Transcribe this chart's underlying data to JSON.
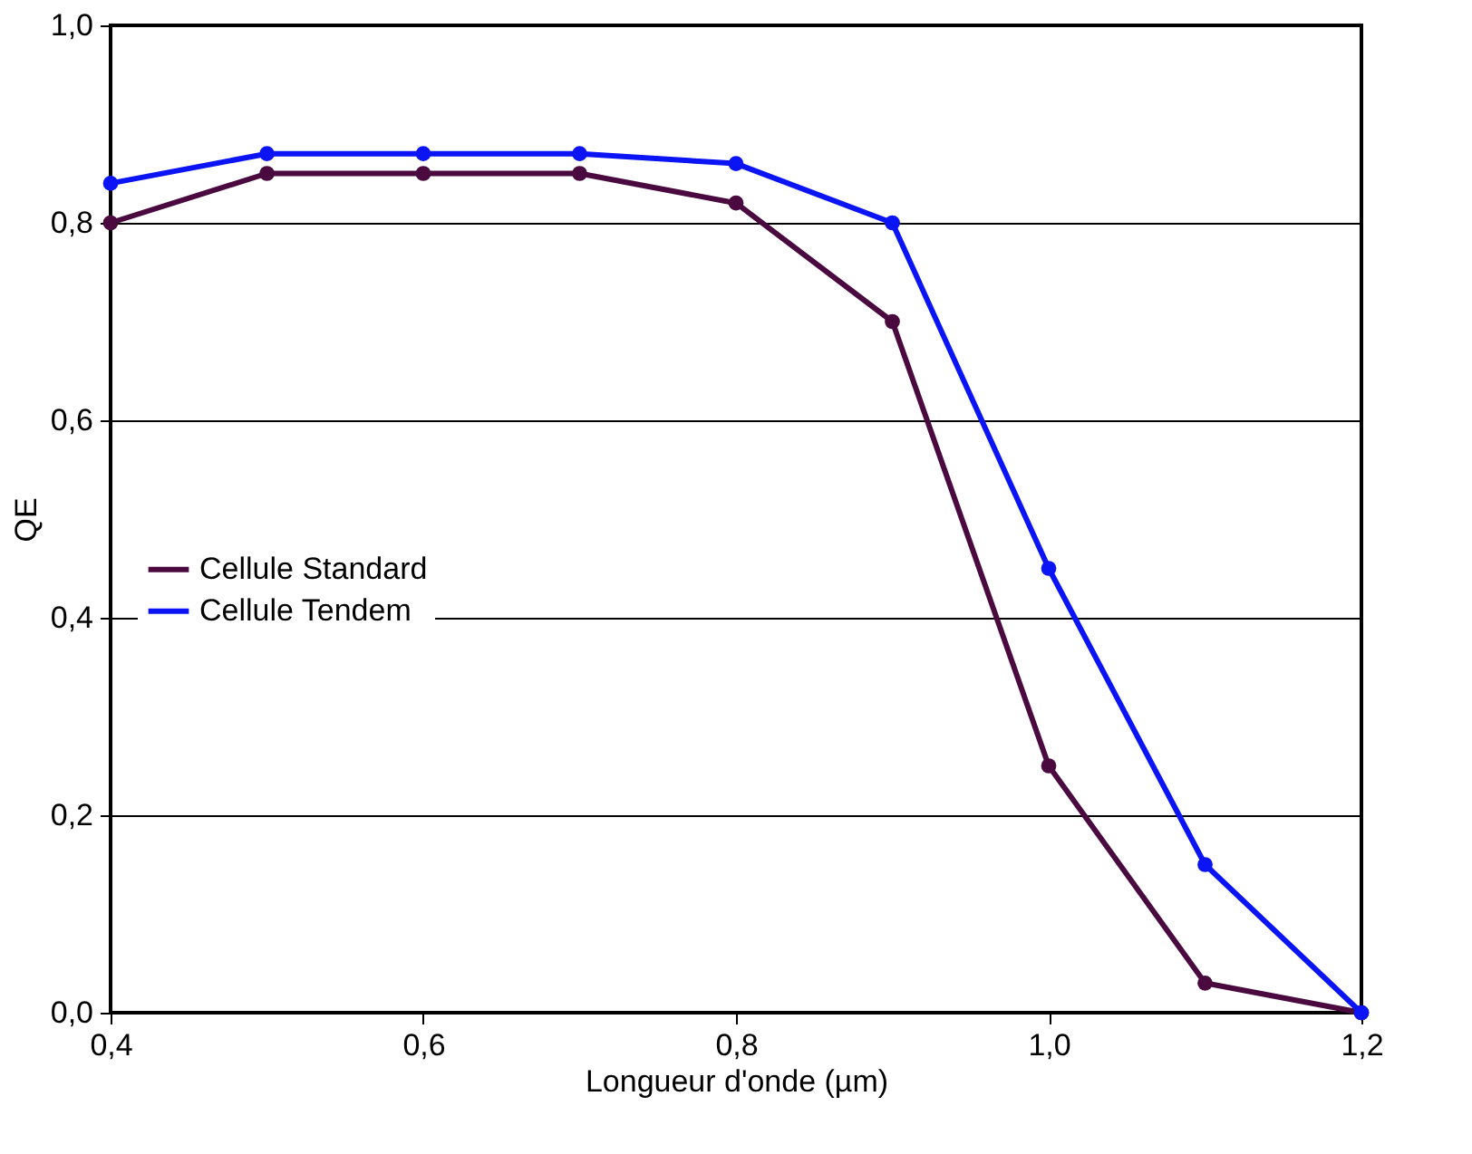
{
  "chart_data": {
    "type": "line",
    "xlabel": "Longueur d'onde (µm)",
    "ylabel": "QE",
    "x": [
      0.4,
      0.5,
      0.6,
      0.7,
      0.8,
      0.9,
      1.0,
      1.1,
      1.2
    ],
    "series": [
      {
        "name": "Cellule Standard",
        "color": "#4a0a40",
        "values": [
          0.8,
          0.85,
          0.85,
          0.85,
          0.82,
          0.7,
          0.25,
          0.03,
          0.0
        ]
      },
      {
        "name": "Cellule Tendem",
        "color": "#0a14f5",
        "values": [
          0.84,
          0.87,
          0.87,
          0.87,
          0.86,
          0.8,
          0.45,
          0.15,
          0.0
        ]
      }
    ],
    "xlim": [
      0.4,
      1.2
    ],
    "xticks": [
      {
        "value": 0.4,
        "label": "0,4"
      },
      {
        "value": 0.6,
        "label": "0,6"
      },
      {
        "value": 0.8,
        "label": "0,8"
      },
      {
        "value": 1.0,
        "label": "1,0"
      },
      {
        "value": 1.2,
        "label": "1,2"
      }
    ],
    "ylim": [
      0,
      1
    ],
    "yticks": [
      {
        "value": 0,
        "label": "0,0"
      },
      {
        "value": 0.2,
        "label": "0,2"
      },
      {
        "value": 0.4,
        "label": "0,4"
      },
      {
        "value": 0.6,
        "label": "0,6"
      },
      {
        "value": 0.8,
        "label": "0,8"
      },
      {
        "value": 1.0,
        "label": "1,0"
      }
    ],
    "grid": "y",
    "legend": "left",
    "marker": "circle",
    "line_style": "solid"
  }
}
